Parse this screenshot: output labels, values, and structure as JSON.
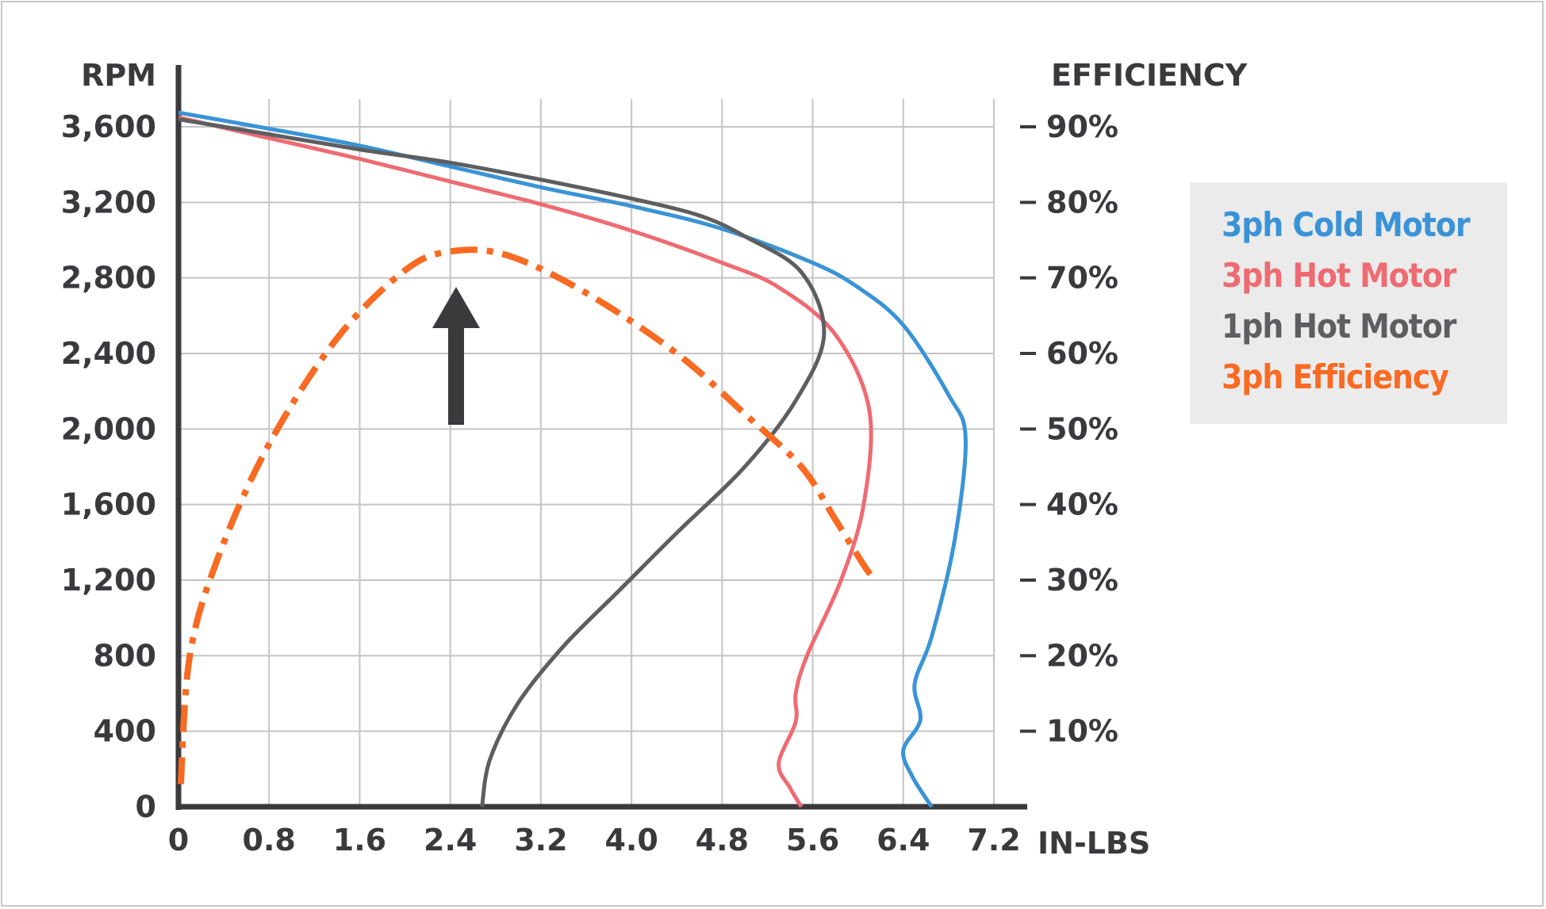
{
  "chart_data": {
    "type": "line",
    "xlabel": "IN-LBS",
    "ylabel": "RPM",
    "y2label": "EFFICIENCY",
    "xlim": [
      0,
      7.2
    ],
    "ylim": [
      0,
      3600
    ],
    "y2lim": [
      0,
      90
    ],
    "x_ticks": [
      "0",
      "0.8",
      "1.6",
      "2.4",
      "3.2",
      "4.0",
      "4.8",
      "5.6",
      "6.4",
      "7.2"
    ],
    "y_ticks": [
      "0",
      "400",
      "800",
      "1,200",
      "1,600",
      "2,000",
      "2,400",
      "2,800",
      "3,200",
      "3,600"
    ],
    "y2_ticks": [
      "10%",
      "20%",
      "30%",
      "40%",
      "50%",
      "60%",
      "70%",
      "80%",
      "90%"
    ],
    "grid": true,
    "legend_position": "right",
    "annotation": "up-arrow",
    "series": [
      {
        "name": "3ph Cold Motor",
        "color": "#3a93d6",
        "style": "solid",
        "axis": "left",
        "points": [
          [
            0,
            3675
          ],
          [
            0.8,
            3590
          ],
          [
            1.6,
            3500
          ],
          [
            2.4,
            3390
          ],
          [
            3.2,
            3280
          ],
          [
            4.0,
            3180
          ],
          [
            4.8,
            3060
          ],
          [
            5.6,
            2880
          ],
          [
            6.0,
            2750
          ],
          [
            6.4,
            2550
          ],
          [
            6.8,
            2180
          ],
          [
            6.95,
            1950
          ],
          [
            6.85,
            1400
          ],
          [
            6.65,
            900
          ],
          [
            6.5,
            650
          ],
          [
            6.55,
            460
          ],
          [
            6.4,
            300
          ],
          [
            6.48,
            160
          ],
          [
            6.65,
            0
          ]
        ]
      },
      {
        "name": "3ph Hot Motor",
        "color": "#ee6b72",
        "style": "solid",
        "axis": "left",
        "points": [
          [
            0,
            3650
          ],
          [
            0.8,
            3540
          ],
          [
            1.6,
            3430
          ],
          [
            2.4,
            3310
          ],
          [
            3.2,
            3190
          ],
          [
            4.0,
            3050
          ],
          [
            4.8,
            2880
          ],
          [
            5.3,
            2750
          ],
          [
            5.8,
            2500
          ],
          [
            6.1,
            2100
          ],
          [
            6.05,
            1600
          ],
          [
            5.85,
            1200
          ],
          [
            5.55,
            800
          ],
          [
            5.45,
            600
          ],
          [
            5.45,
            450
          ],
          [
            5.3,
            230
          ],
          [
            5.4,
            100
          ],
          [
            5.5,
            0
          ]
        ]
      },
      {
        "name": "1ph Hot Motor",
        "color": "#5e5e60",
        "style": "solid",
        "axis": "left",
        "points": [
          [
            0,
            3640
          ],
          [
            0.8,
            3560
          ],
          [
            1.6,
            3480
          ],
          [
            2.4,
            3410
          ],
          [
            3.2,
            3320
          ],
          [
            4.0,
            3220
          ],
          [
            4.6,
            3130
          ],
          [
            5.0,
            3020
          ],
          [
            5.5,
            2830
          ],
          [
            5.7,
            2500
          ],
          [
            5.45,
            2150
          ],
          [
            5.0,
            1800
          ],
          [
            4.4,
            1450
          ],
          [
            3.9,
            1150
          ],
          [
            3.4,
            850
          ],
          [
            3.0,
            550
          ],
          [
            2.75,
            250
          ],
          [
            2.68,
            0
          ]
        ]
      },
      {
        "name": "3ph Efficiency",
        "color": "#f96a22",
        "style": "dashdot",
        "axis": "right",
        "points": [
          [
            0.02,
            3
          ],
          [
            0.1,
            20
          ],
          [
            0.35,
            33
          ],
          [
            0.8,
            48
          ],
          [
            1.4,
            62
          ],
          [
            2.0,
            71
          ],
          [
            2.4,
            73.5
          ],
          [
            2.9,
            73
          ],
          [
            3.6,
            68
          ],
          [
            4.4,
            60
          ],
          [
            5.0,
            52
          ],
          [
            5.5,
            45
          ],
          [
            5.8,
            38
          ],
          [
            6.05,
            32
          ],
          [
            6.15,
            30
          ]
        ]
      }
    ]
  },
  "legend": {
    "items": [
      {
        "label": "3ph Cold Motor",
        "color": "#3a93d6"
      },
      {
        "label": "3ph Hot Motor",
        "color": "#ee6b72"
      },
      {
        "label": "1ph Hot Motor",
        "color": "#5e5e60"
      },
      {
        "label": "3ph Efficiency",
        "color": "#f96a22"
      }
    ]
  }
}
